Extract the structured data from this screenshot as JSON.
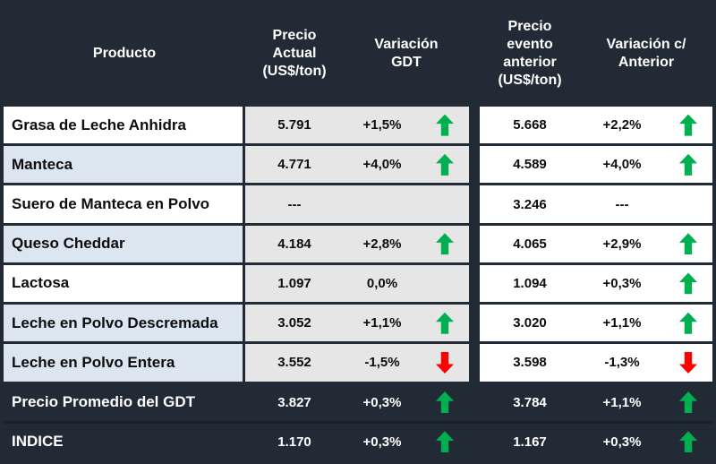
{
  "header": {
    "producto": "Producto",
    "precio_actual": "Precio Actual (US$/ton)",
    "variacion_gdt": "Variación GDT",
    "precio_anterior": "Precio evento anterior (US$/ton)",
    "variacion_anterior": "Variación c/ Anterior"
  },
  "colors": {
    "header_bg": "#222a35",
    "row_alt_bg": "#dce6f1",
    "current_values_bg": "#e7e6e6",
    "up_arrow": "#00b050",
    "down_arrow": "#ff0000"
  },
  "chart_data": {
    "type": "table",
    "columns": [
      "Producto",
      "Precio Actual (US$/ton)",
      "Variación GDT",
      "Precio evento anterior (US$/ton)",
      "Variación c/ Anterior"
    ],
    "rows": [
      {
        "name": "Grasa de Leche Anhidra",
        "actual": "5.791",
        "var_gdt": "+1,5%",
        "gdt_arrow": "up",
        "anterior": "5.668",
        "var_ant": "+2,2%",
        "ant_arrow": "up"
      },
      {
        "name": "Manteca",
        "actual": "4.771",
        "var_gdt": "+4,0%",
        "gdt_arrow": "up",
        "anterior": "4.589",
        "var_ant": "+4,0%",
        "ant_arrow": "up"
      },
      {
        "name": "Suero de Manteca en Polvo",
        "actual": "---",
        "var_gdt": "",
        "gdt_arrow": "none",
        "anterior": "3.246",
        "var_ant": "---",
        "ant_arrow": "none"
      },
      {
        "name": "Queso Cheddar",
        "actual": "4.184",
        "var_gdt": "+2,8%",
        "gdt_arrow": "up",
        "anterior": "4.065",
        "var_ant": "+2,9%",
        "ant_arrow": "up"
      },
      {
        "name": "Lactosa",
        "actual": "1.097",
        "var_gdt": "0,0%",
        "gdt_arrow": "none",
        "anterior": "1.094",
        "var_ant": "+0,3%",
        "ant_arrow": "up"
      },
      {
        "name": "Leche en Polvo Descremada",
        "actual": "3.052",
        "var_gdt": "+1,1%",
        "gdt_arrow": "up",
        "anterior": "3.020",
        "var_ant": "+1,1%",
        "ant_arrow": "up"
      },
      {
        "name": "Leche en Polvo Entera",
        "actual": "3.552",
        "var_gdt": "-1,5%",
        "gdt_arrow": "down",
        "anterior": "3.598",
        "var_ant": "-1,3%",
        "ant_arrow": "down"
      },
      {
        "name": "Precio Promedio del GDT",
        "actual": "3.827",
        "var_gdt": "+0,3%",
        "gdt_arrow": "up",
        "anterior": "3.784",
        "var_ant": "+1,1%",
        "ant_arrow": "up"
      },
      {
        "name": "INDICE",
        "actual": "1.170",
        "var_gdt": "+0,3%",
        "gdt_arrow": "up",
        "anterior": "1.167",
        "var_ant": "+0,3%",
        "ant_arrow": "up"
      }
    ]
  }
}
